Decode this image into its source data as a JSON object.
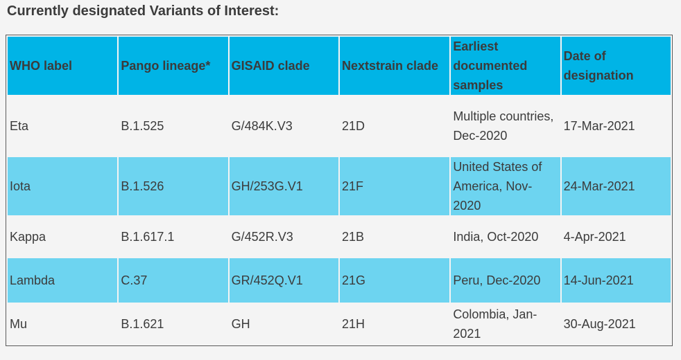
{
  "header": {
    "title": "Currently designated Variants of Interest:"
  },
  "table": {
    "columns": [
      "WHO label",
      "Pango lineage*",
      "GISAID clade",
      "Nextstrain clade",
      "Earliest documented samples",
      "Date of designation"
    ],
    "rows": [
      [
        "Eta",
        "B.1.525",
        "G/484K.V3",
        "21D",
        "Multiple countries, Dec-2020",
        "17-Mar-2021"
      ],
      [
        "Iota",
        "B.1.526",
        "GH/253G.V1",
        "21F",
        "United States of America, Nov-2020",
        "24-Mar-2021"
      ],
      [
        "Kappa",
        "B.1.617.1",
        "G/452R.V3",
        "21B",
        "India, Oct-2020",
        "4-Apr-2021"
      ],
      [
        "Lambda",
        "C.37",
        "GR/452Q.V1",
        "21G",
        "Peru, Dec-2020",
        "14-Jun-2021"
      ],
      [
        "Mu",
        "B.1.621",
        "GH",
        "21H",
        "Colombia, Jan-2021",
        "30-Aug-2021"
      ]
    ]
  }
}
